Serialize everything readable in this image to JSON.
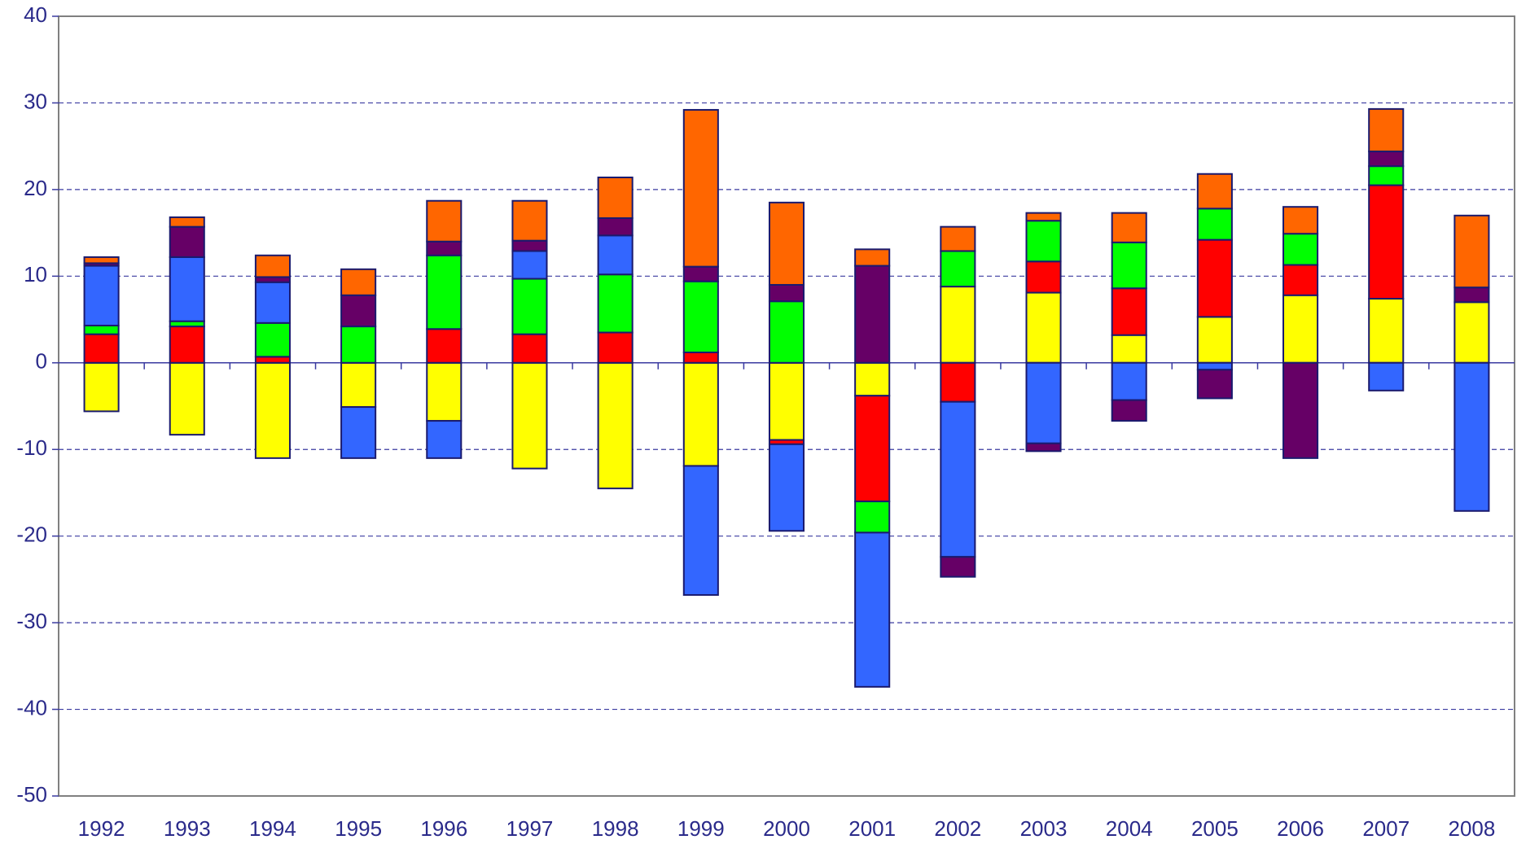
{
  "chart_data": {
    "type": "stacked_bar",
    "categories": [
      "1992",
      "1993",
      "1994",
      "1995",
      "1996",
      "1997",
      "1998",
      "1999",
      "2000",
      "2001",
      "2002",
      "2003",
      "2004",
      "2005",
      "2006",
      "2007",
      "2008"
    ],
    "series": [
      {
        "color": "#ffff00",
        "values": [
          -5.6,
          -8.3,
          -11.0,
          -5.1,
          -6.7,
          -12.2,
          -14.5,
          -11.9,
          -8.9,
          -3.8,
          8.8,
          8.1,
          3.2,
          5.3,
          7.8,
          7.4,
          7.0
        ]
      },
      {
        "color": "#ff0000",
        "values": [
          3.3,
          4.2,
          0.7,
          0,
          3.9,
          3.3,
          3.5,
          1.2,
          -0.5,
          -12.2,
          -4.5,
          3.6,
          5.4,
          8.9,
          3.5,
          13.1,
          0
        ]
      },
      {
        "color": "#00ff00",
        "values": [
          1.0,
          0.6,
          3.9,
          4.2,
          8.5,
          6.4,
          6.7,
          8.2,
          7.1,
          -3.6,
          4.1,
          4.7,
          5.3,
          3.6,
          3.6,
          2.2,
          0
        ]
      },
      {
        "color": "#3366ff",
        "values": [
          6.9,
          7.4,
          4.7,
          -5.9,
          -4.3,
          3.2,
          4.5,
          -14.9,
          -10.0,
          -17.8,
          -17.9,
          -9.3,
          -4.3,
          -0.8,
          0,
          -3.2,
          -17.1
        ]
      },
      {
        "color": "#660066",
        "values": [
          0.3,
          3.5,
          0.6,
          3.6,
          1.6,
          1.2,
          2.0,
          1.7,
          1.9,
          11.2,
          -2.3,
          -0.9,
          -2.4,
          -3.3,
          -11.0,
          1.7,
          1.7
        ]
      },
      {
        "color": "#ff6600",
        "values": [
          0.7,
          1.1,
          2.5,
          3.0,
          4.7,
          4.6,
          4.7,
          18.1,
          9.5,
          1.9,
          2.8,
          0.9,
          3.4,
          4.0,
          3.1,
          4.9,
          8.3
        ]
      }
    ],
    "ylim": [
      -50,
      40
    ],
    "yticks": [
      -50,
      -40,
      -30,
      -20,
      -10,
      0,
      10,
      20,
      30,
      40
    ],
    "grid": true
  }
}
